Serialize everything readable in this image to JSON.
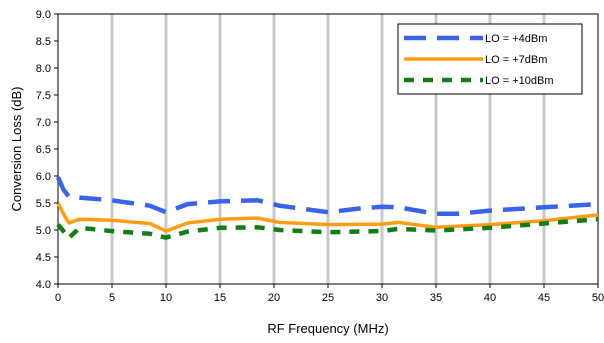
{
  "chart_data": {
    "type": "line",
    "xlabel": "RF Frequency (MHz)",
    "ylabel": "Conversion Loss (dB)",
    "xlim": [
      0,
      50
    ],
    "ylim": [
      4.0,
      9.0
    ],
    "xticks": [
      "0",
      "5",
      "10",
      "15",
      "20",
      "25",
      "30",
      "35",
      "40",
      "45",
      "50"
    ],
    "yticks": [
      "4.0",
      "4.5",
      "5.0",
      "5.5",
      "6.0",
      "6.5",
      "7.0",
      "7.5",
      "8.0",
      "8.5",
      "9.0"
    ],
    "grid": "vertical",
    "legend_position": "top-right",
    "series": [
      {
        "name": "LO = +4dBm",
        "color": "#3a63e8",
        "style": "dashed",
        "points": [
          [
            0,
            5.98
          ],
          [
            0.5,
            5.75
          ],
          [
            1,
            5.62
          ],
          [
            2,
            5.6
          ],
          [
            5,
            5.55
          ],
          [
            8.5,
            5.45
          ],
          [
            10,
            5.33
          ],
          [
            12,
            5.48
          ],
          [
            15,
            5.53
          ],
          [
            18.5,
            5.55
          ],
          [
            20.5,
            5.45
          ],
          [
            25,
            5.33
          ],
          [
            28,
            5.4
          ],
          [
            30,
            5.43
          ],
          [
            31.5,
            5.42
          ],
          [
            35,
            5.3
          ],
          [
            37,
            5.3
          ],
          [
            40,
            5.36
          ],
          [
            45,
            5.42
          ],
          [
            50,
            5.48
          ]
        ]
      },
      {
        "name": "LO = +7dBm",
        "color": "#ff9e16",
        "style": "solid",
        "points": [
          [
            0,
            5.5
          ],
          [
            0.5,
            5.3
          ],
          [
            1,
            5.13
          ],
          [
            2,
            5.2
          ],
          [
            5,
            5.18
          ],
          [
            8.5,
            5.12
          ],
          [
            10,
            4.98
          ],
          [
            12,
            5.13
          ],
          [
            15,
            5.2
          ],
          [
            18.5,
            5.22
          ],
          [
            20.5,
            5.14
          ],
          [
            25,
            5.1
          ],
          [
            30,
            5.11
          ],
          [
            31.5,
            5.14
          ],
          [
            35,
            5.05
          ],
          [
            40,
            5.1
          ],
          [
            45,
            5.17
          ],
          [
            50,
            5.28
          ]
        ]
      },
      {
        "name": "LO = +10dBm",
        "color": "#157d15",
        "style": "dotted",
        "points": [
          [
            0,
            5.1
          ],
          [
            0.5,
            4.98
          ],
          [
            1,
            4.85
          ],
          [
            2,
            5.04
          ],
          [
            5,
            4.98
          ],
          [
            8.5,
            4.93
          ],
          [
            10,
            4.86
          ],
          [
            12,
            4.97
          ],
          [
            15,
            5.04
          ],
          [
            18.5,
            5.05
          ],
          [
            20.5,
            5.0
          ],
          [
            25,
            4.96
          ],
          [
            30,
            4.98
          ],
          [
            31.5,
            5.02
          ],
          [
            35,
            4.99
          ],
          [
            40,
            5.04
          ],
          [
            45,
            5.12
          ],
          [
            50,
            5.2
          ]
        ]
      }
    ]
  }
}
